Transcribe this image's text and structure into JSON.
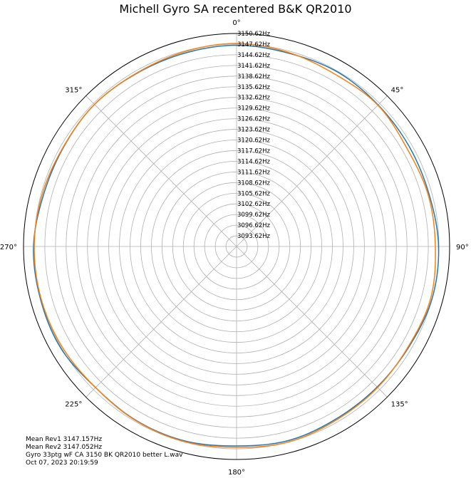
{
  "chart_data": {
    "type": "polar-line",
    "title": "Michell Gyro SA recentered B&K QR2010",
    "angle_labels": [
      "0°",
      "45°",
      "90°",
      "135°",
      "180°",
      "225°",
      "270°",
      "315°"
    ],
    "radial_tick_labels": [
      "3093.62Hz",
      "3096.62Hz",
      "3099.62Hz",
      "3102.62Hz",
      "3105.62Hz",
      "3108.62Hz",
      "3111.62Hz",
      "3114.62Hz",
      "3117.62Hz",
      "3120.62Hz",
      "3123.62Hz",
      "3126.62Hz",
      "3129.62Hz",
      "3132.62Hz",
      "3135.62Hz",
      "3138.62Hz",
      "3141.62Hz",
      "3144.62Hz",
      "3147.62Hz",
      "3150.62Hz"
    ],
    "radial_range_hz": [
      3090.62,
      3150.62
    ],
    "angle_direction": "clockwise",
    "angle_zero": "top",
    "grid": true,
    "series": [
      {
        "color": "#1f77b4",
        "theta_deg": [
          0,
          15,
          30,
          45,
          60,
          75,
          90,
          105,
          120,
          135,
          150,
          165,
          180,
          195,
          210,
          225,
          240,
          255,
          270,
          285,
          300,
          315,
          330,
          345
        ],
        "r_hz": [
          3147.3,
          3147.0,
          3147.4,
          3147.0,
          3146.8,
          3146.8,
          3147.5,
          3147.6,
          3146.8,
          3146.6,
          3146.7,
          3147.2,
          3146.8,
          3147.3,
          3147.2,
          3146.8,
          3147.8,
          3147.8,
          3147.8,
          3146.9,
          3146.8,
          3147.2,
          3146.9,
          3147.0
        ]
      },
      {
        "color": "#ff7f0e",
        "theta_deg": [
          0,
          15,
          30,
          45,
          60,
          75,
          90,
          105,
          120,
          135,
          150,
          165,
          180,
          195,
          210,
          225,
          240,
          255,
          270,
          285,
          300,
          315,
          330,
          345
        ],
        "r_hz": [
          3147.8,
          3147.2,
          3146.5,
          3146.9,
          3146.0,
          3146.5,
          3146.6,
          3147.2,
          3146.6,
          3146.8,
          3147.0,
          3147.6,
          3147.2,
          3147.5,
          3147.3,
          3146.8,
          3147.3,
          3147.6,
          3147.6,
          3147.3,
          3146.9,
          3147.2,
          3147.0,
          3147.4
        ]
      }
    ]
  },
  "notes": {
    "mean_rev1": "Mean Rev1 3147.157Hz",
    "mean_rev2": "Mean Rev2 3147.052Hz",
    "filename": "Gyro 33ptg wF CA 3150 BK QR2010 better L.wav",
    "date": "Oct 07, 2023 20:19:59"
  }
}
